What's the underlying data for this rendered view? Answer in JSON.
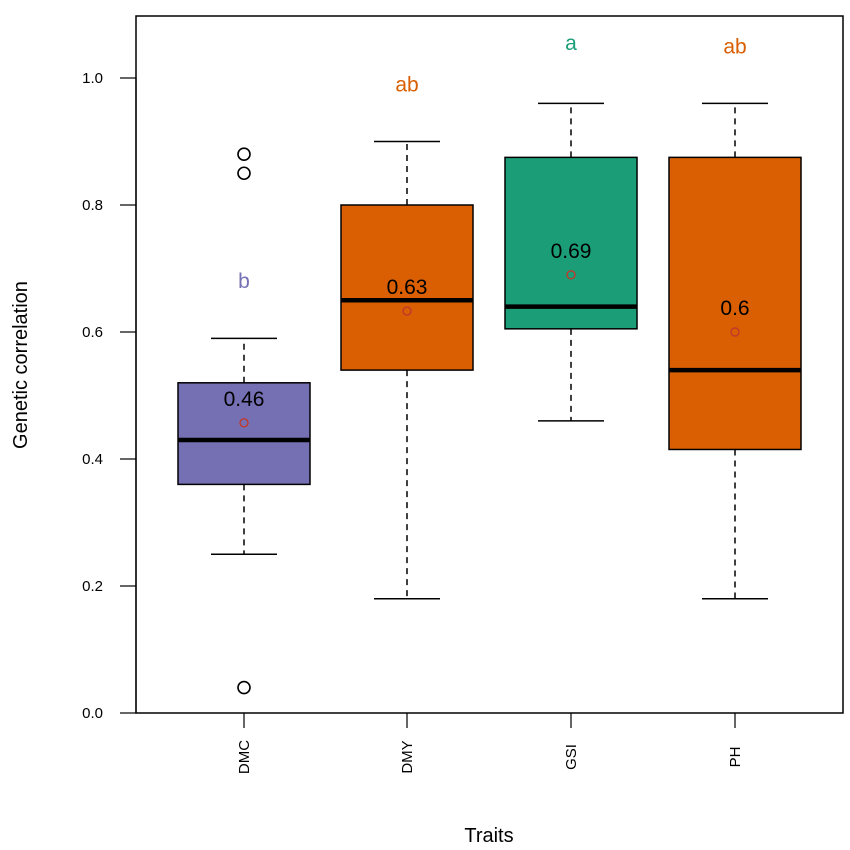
{
  "chart_data": {
    "type": "box",
    "xlabel": "Traits",
    "ylabel": "Genetic correlation",
    "ylim": [
      0.0,
      1.1
    ],
    "yticks": [
      "0.0",
      "0.2",
      "0.4",
      "0.6",
      "0.8",
      "1.0"
    ],
    "grid": false,
    "categories": [
      "DMC",
      "DMY",
      "GSI",
      "PH"
    ],
    "boxes": [
      {
        "category": "DMC",
        "color": "#7570b3",
        "letter_color": "#7570b3",
        "whisker_low": 0.25,
        "q1": 0.36,
        "median": 0.43,
        "q3": 0.52,
        "whisker_high": 0.59,
        "outliers": [
          0.04,
          0.85,
          0.88
        ],
        "mean": 0.457,
        "mean_label": "0.46",
        "group_letter": "b",
        "letter_y": 0.68
      },
      {
        "category": "DMY",
        "color": "#d95f02",
        "letter_color": "#d95f02",
        "whisker_low": 0.18,
        "q1": 0.54,
        "median": 0.65,
        "q3": 0.8,
        "whisker_high": 0.9,
        "outliers": [],
        "mean": 0.633,
        "mean_label": "0.63",
        "group_letter": "ab",
        "letter_y": 0.99
      },
      {
        "category": "GSI",
        "color": "#1b9e77",
        "letter_color": "#1b9e77",
        "whisker_low": 0.46,
        "q1": 0.605,
        "median": 0.64,
        "q3": 0.875,
        "whisker_high": 0.96,
        "outliers": [],
        "mean": 0.69,
        "mean_label": "0.69",
        "group_letter": "a",
        "letter_y": 1.055
      },
      {
        "category": "PH",
        "color": "#d95f02",
        "letter_color": "#d95f02",
        "whisker_low": 0.18,
        "q1": 0.415,
        "median": 0.54,
        "q3": 0.875,
        "whisker_high": 0.96,
        "outliers": [],
        "mean": 0.6,
        "mean_label": "0.6",
        "group_letter": "ab",
        "letter_y": 1.05
      }
    ],
    "mean_marker_color": "#c0392b"
  }
}
